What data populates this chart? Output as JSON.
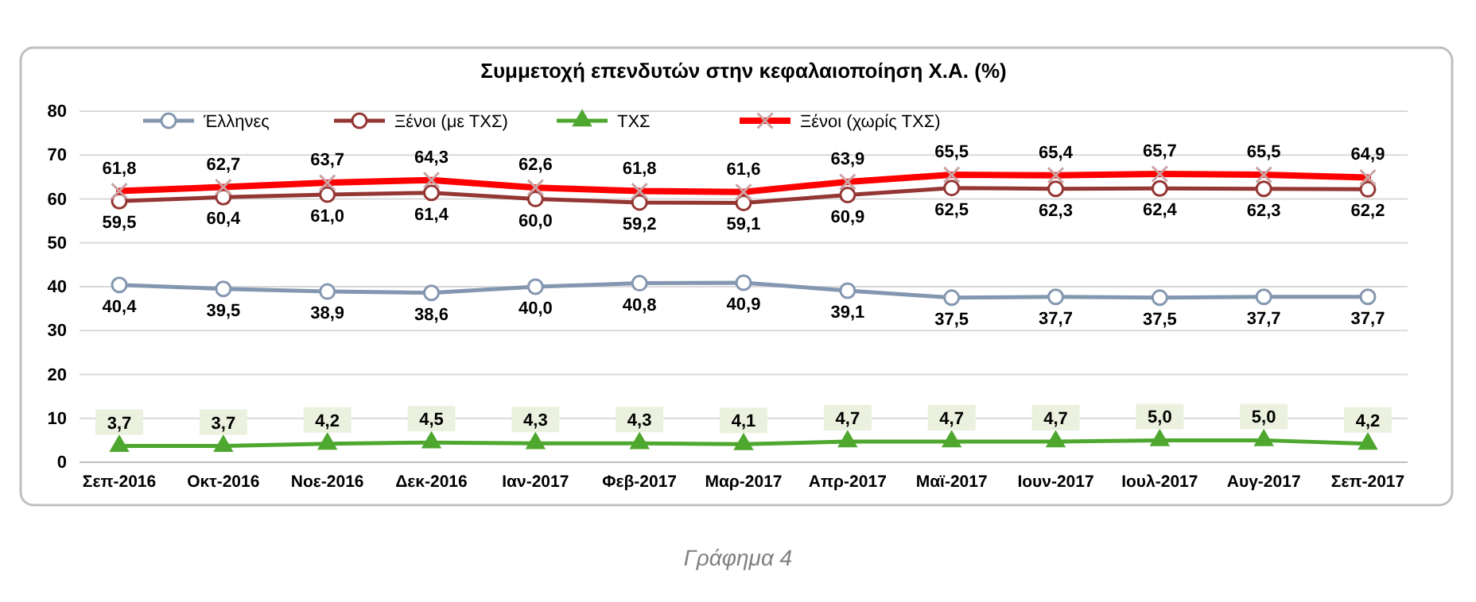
{
  "chart_data": {
    "type": "line",
    "title": "Συμμετοχή επενδυτών στην κεφαλαιοποίηση Χ.Α. (%)",
    "categories": [
      "Σεπ-2016",
      "Οκτ-2016",
      "Νοε-2016",
      "Δεκ-2016",
      "Ιαν-2017",
      "Φεβ-2017",
      "Μαρ-2017",
      "Απρ-2017",
      "Μαϊ-2017",
      "Ιουν-2017",
      "Ιουλ-2017",
      "Αυγ-2017",
      "Σεπ-2017"
    ],
    "series": [
      {
        "name": "Έλληνες",
        "color": "#8497b0",
        "marker": "circle",
        "values": [
          40.4,
          39.5,
          38.9,
          38.6,
          40.0,
          40.8,
          40.9,
          39.1,
          37.5,
          37.7,
          37.5,
          37.7,
          37.7
        ],
        "value_labels": [
          "40,4",
          "39,5",
          "38,9",
          "38,6",
          "40,0",
          "40,8",
          "40,9",
          "39,1",
          "37,5",
          "37,7",
          "37,5",
          "37,7",
          "37,7"
        ]
      },
      {
        "name": "Ξένοι (με ΤΧΣ)",
        "color": "#943634",
        "marker": "circle",
        "values": [
          59.5,
          60.4,
          61.0,
          61.4,
          60.0,
          59.2,
          59.1,
          60.9,
          62.5,
          62.3,
          62.4,
          62.3,
          62.2
        ],
        "value_labels": [
          "59,5",
          "60,4",
          "61,0",
          "61,4",
          "60,0",
          "59,2",
          "59,1",
          "60,9",
          "62,5",
          "62,3",
          "62,4",
          "62,3",
          "62,2"
        ]
      },
      {
        "name": "ΤΧΣ",
        "color": "#4ea72e",
        "marker": "triangle",
        "values": [
          3.7,
          3.7,
          4.2,
          4.5,
          4.3,
          4.3,
          4.1,
          4.7,
          4.7,
          4.7,
          5.0,
          5.0,
          4.2
        ],
        "value_labels": [
          "3,7",
          "3,7",
          "4,2",
          "4,5",
          "4,3",
          "4,3",
          "4,1",
          "4,7",
          "4,7",
          "4,7",
          "5,0",
          "5,0",
          "4,2"
        ]
      },
      {
        "name": "Ξένοι (χωρίς ΤΧΣ)",
        "color": "#ff0000",
        "marker": "cross",
        "values": [
          61.8,
          62.7,
          63.7,
          64.3,
          62.6,
          61.8,
          61.6,
          63.9,
          65.5,
          65.4,
          65.7,
          65.5,
          64.9
        ],
        "value_labels": [
          "61,8",
          "62,7",
          "63,7",
          "64,3",
          "62,6",
          "61,8",
          "61,6",
          "63,9",
          "65,5",
          "65,4",
          "65,7",
          "65,5",
          "64,9"
        ]
      }
    ],
    "ylim": [
      0,
      80
    ],
    "yticks": [
      0,
      10,
      20,
      30,
      40,
      50,
      60,
      70,
      80
    ],
    "grid": "y",
    "legend": "top left",
    "annotations": [
      "Γράφημα 4"
    ]
  }
}
